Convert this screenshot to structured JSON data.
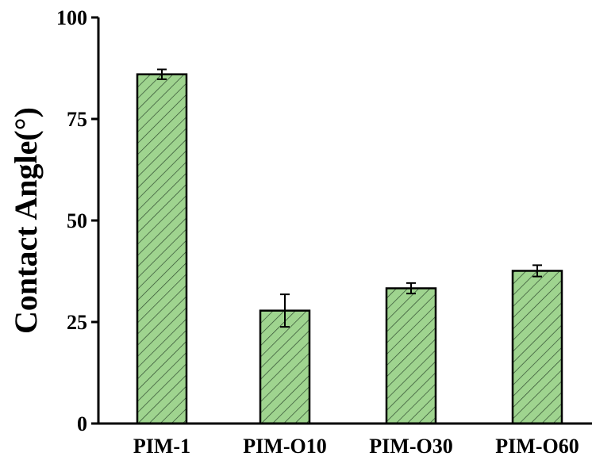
{
  "chart_data": {
    "type": "bar",
    "title": "",
    "xlabel": "",
    "ylabel": "Contact Angle(°)",
    "categories": [
      "PIM-1",
      "PIM-O10",
      "PIM-O30",
      "PIM-O60"
    ],
    "values": [
      86.0,
      27.8,
      33.3,
      37.6
    ],
    "errors": [
      1.2,
      4.0,
      1.3,
      1.4
    ],
    "ylim": [
      0,
      100
    ],
    "yticks": [
      0,
      25,
      50,
      75,
      100
    ],
    "grid": false,
    "legend": "none",
    "colors": {
      "bar_fill": "#9fd48f",
      "hatch": "#2f4a2f",
      "axis": "#000000"
    },
    "pattern": "diagonal-hatch"
  }
}
